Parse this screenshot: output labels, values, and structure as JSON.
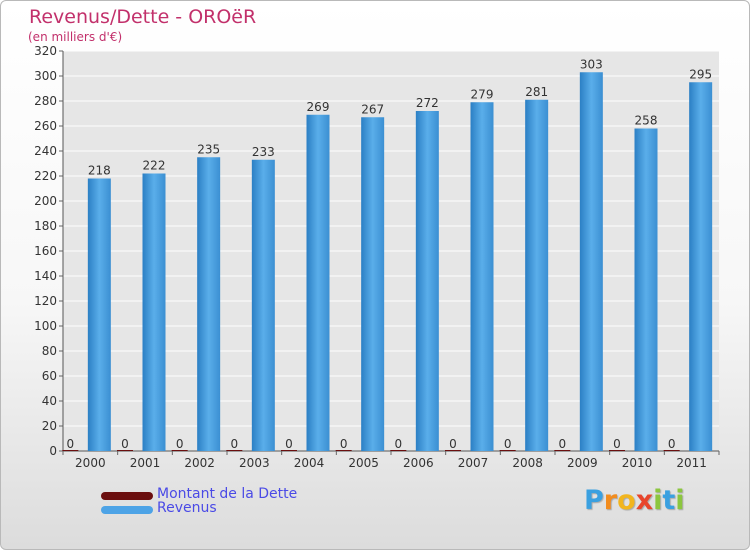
{
  "chart_data": {
    "type": "bar",
    "title": "Revenus/Dette - OROëR",
    "subtitle": "(en milliers d'€)",
    "xlabel": "",
    "ylabel": "",
    "ylim": [
      0,
      320
    ],
    "yticks": [
      "0",
      "20",
      "40",
      "60",
      "80",
      "100",
      "120",
      "140",
      "160",
      "180",
      "200",
      "220",
      "240",
      "260",
      "280",
      "300",
      "320"
    ],
    "grid": true,
    "categories": [
      "2000",
      "2001",
      "2002",
      "2003",
      "2004",
      "2005",
      "2006",
      "2007",
      "2008",
      "2009",
      "2010",
      "2011"
    ],
    "series": [
      {
        "name": "Montant de la Dette",
        "color": "#6b0f0f",
        "values": [
          0,
          0,
          0,
          0,
          0,
          0,
          0,
          0,
          0,
          0,
          0,
          0
        ]
      },
      {
        "name": "Revenus",
        "color": "#4da3e6",
        "values": [
          218,
          222,
          235,
          233,
          269,
          267,
          272,
          279,
          281,
          303,
          258,
          295
        ]
      }
    ],
    "legend_position": "bottom-left"
  },
  "logo": {
    "letters": [
      {
        "char": "P",
        "color": "#3aa0e0"
      },
      {
        "char": "r",
        "color": "#f28c1e"
      },
      {
        "char": "o",
        "color": "#f2b51e"
      },
      {
        "char": "x",
        "color": "#e8452c"
      },
      {
        "char": "i",
        "color": "#8cc63f"
      },
      {
        "char": "t",
        "color": "#3aa0e0"
      },
      {
        "char": "i",
        "color": "#8cc63f"
      }
    ]
  }
}
